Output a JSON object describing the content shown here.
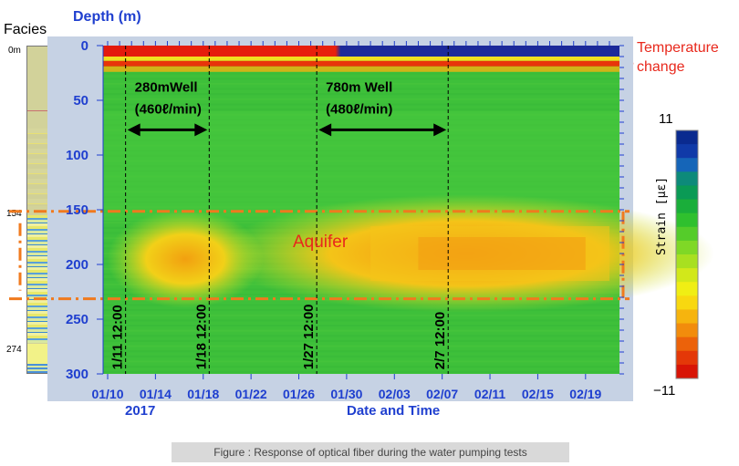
{
  "facies": {
    "title": "Facies",
    "depth_marks": [
      "0m",
      "154",
      "274"
    ]
  },
  "annotations": {
    "temperature_change": [
      "Temperature",
      "change"
    ],
    "aquifer": "Aquifer",
    "well_280": [
      "280mWell",
      "(460ℓ/min)"
    ],
    "well_780": [
      "780m Well",
      "(480ℓ/min)"
    ],
    "event_times": [
      "1/11 12:00",
      "1/18 12:00",
      "1/27 12:00",
      "2/7 12:00"
    ],
    "year": "2017"
  },
  "colorbar": {
    "max": "11",
    "min": "−11",
    "label": "Strain [με]",
    "colors": [
      "#0a2a8f",
      "#103aa8",
      "#1565b8",
      "#0d8a7a",
      "#0a9a55",
      "#1aae3a",
      "#2fc02e",
      "#55cc2a",
      "#7fd826",
      "#a8e020",
      "#d2e81a",
      "#f0ee14",
      "#f8d810",
      "#f6b40e",
      "#f28c0c",
      "#ec620a",
      "#e43808",
      "#d81406"
    ]
  },
  "caption": "Figure : Response of optical fiber during the water pumping tests",
  "chart_data": {
    "type": "heatmap",
    "xlabel": "Date and Time",
    "ylabel": "Depth (m)",
    "ylim": [
      0,
      300
    ],
    "y_inverted": true,
    "yticks": [
      0,
      50,
      100,
      150,
      200,
      250,
      300
    ],
    "x_tick_labels": [
      "01/10",
      "01/14",
      "01/18",
      "01/22",
      "01/26",
      "01/30",
      "02/03",
      "02/07",
      "02/11",
      "02/15",
      "02/19"
    ],
    "x_tick_days": [
      0,
      4,
      8,
      12,
      16,
      20,
      24,
      28,
      32,
      36,
      40
    ],
    "x_range_days": [
      0,
      42
    ],
    "event_lines_days": [
      1.5,
      8.5,
      17.5,
      28.5
    ],
    "aquifer_depth": [
      154,
      228
    ],
    "pumping_periods": [
      {
        "label": "280mWell",
        "rate": "(460ℓ/min)",
        "start_day": 1.5,
        "end_day": 8.5
      },
      {
        "label": "780m Well",
        "rate": "(480ℓ/min)",
        "start_day": 17.5,
        "end_day": 28.5
      }
    ],
    "strain_range": [
      -11,
      11
    ]
  }
}
